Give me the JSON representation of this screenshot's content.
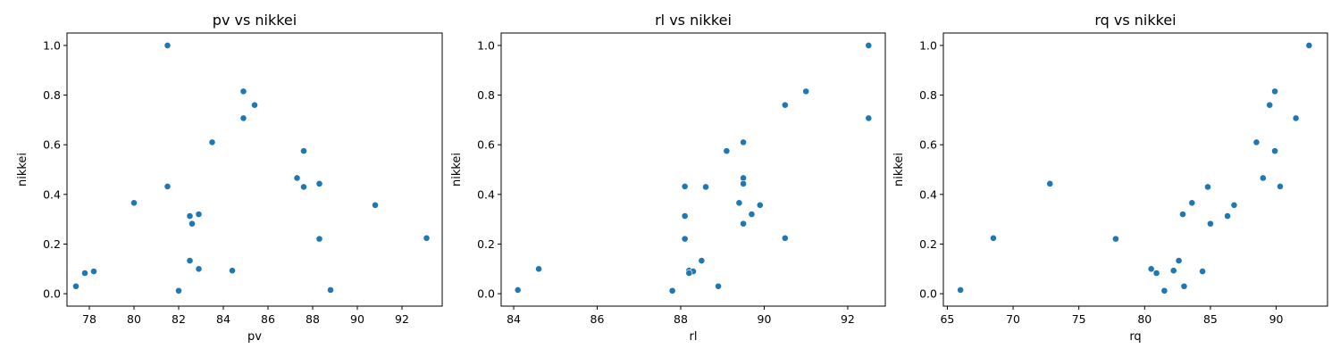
{
  "colors": {
    "point": "#1f77b4"
  },
  "chart_data": [
    {
      "type": "scatter",
      "title": "pv vs nikkei",
      "xlabel": "pv",
      "ylabel": "nikkei",
      "xlim": [
        77.0,
        93.8
      ],
      "ylim": [
        -0.05,
        1.05
      ],
      "xticks": [
        78,
        80,
        82,
        84,
        86,
        88,
        90,
        92
      ],
      "yticks": [
        0.0,
        0.2,
        0.4,
        0.6,
        0.8,
        1.0
      ],
      "grid": false,
      "points": [
        [
          81.5,
          1.0
        ],
        [
          84.9,
          0.815
        ],
        [
          85.4,
          0.76
        ],
        [
          84.9,
          0.707
        ],
        [
          83.5,
          0.61
        ],
        [
          87.6,
          0.575
        ],
        [
          87.3,
          0.466
        ],
        [
          88.3,
          0.443
        ],
        [
          81.5,
          0.432
        ],
        [
          87.6,
          0.43
        ],
        [
          80.0,
          0.366
        ],
        [
          90.8,
          0.357
        ],
        [
          82.9,
          0.32
        ],
        [
          82.5,
          0.313
        ],
        [
          82.6,
          0.282
        ],
        [
          93.1,
          0.224
        ],
        [
          88.3,
          0.221
        ],
        [
          82.5,
          0.133
        ],
        [
          82.9,
          0.1
        ],
        [
          84.4,
          0.093
        ],
        [
          78.2,
          0.09
        ],
        [
          77.8,
          0.083
        ],
        [
          77.4,
          0.03
        ],
        [
          88.8,
          0.015
        ],
        [
          82.0,
          0.012
        ]
      ]
    },
    {
      "type": "scatter",
      "title": "rl vs nikkei",
      "xlabel": "rl",
      "ylabel": "nikkei",
      "xlim": [
        83.7,
        92.9
      ],
      "ylim": [
        -0.05,
        1.05
      ],
      "xticks": [
        84,
        86,
        88,
        90,
        92
      ],
      "yticks": [
        0.0,
        0.2,
        0.4,
        0.6,
        0.8,
        1.0
      ],
      "grid": false,
      "points": [
        [
          92.5,
          1.0
        ],
        [
          91.0,
          0.815
        ],
        [
          90.5,
          0.76
        ],
        [
          92.5,
          0.707
        ],
        [
          89.5,
          0.61
        ],
        [
          89.1,
          0.575
        ],
        [
          89.5,
          0.466
        ],
        [
          89.5,
          0.443
        ],
        [
          88.1,
          0.432
        ],
        [
          88.6,
          0.43
        ],
        [
          89.4,
          0.366
        ],
        [
          89.9,
          0.357
        ],
        [
          89.7,
          0.32
        ],
        [
          88.1,
          0.313
        ],
        [
          89.5,
          0.282
        ],
        [
          90.5,
          0.224
        ],
        [
          88.1,
          0.221
        ],
        [
          88.5,
          0.133
        ],
        [
          84.6,
          0.1
        ],
        [
          88.2,
          0.093
        ],
        [
          88.3,
          0.09
        ],
        [
          88.2,
          0.083
        ],
        [
          88.9,
          0.03
        ],
        [
          84.1,
          0.015
        ],
        [
          87.8,
          0.012
        ]
      ]
    },
    {
      "type": "scatter",
      "title": "rq vs nikkei",
      "xlabel": "rq",
      "ylabel": "nikkei",
      "xlim": [
        64.7,
        93.9
      ],
      "ylim": [
        -0.05,
        1.05
      ],
      "xticks": [
        65,
        70,
        75,
        80,
        85,
        90
      ],
      "yticks": [
        0.0,
        0.2,
        0.4,
        0.6,
        0.8,
        1.0
      ],
      "grid": false,
      "points": [
        [
          92.5,
          1.0
        ],
        [
          89.9,
          0.815
        ],
        [
          89.5,
          0.76
        ],
        [
          91.5,
          0.707
        ],
        [
          88.5,
          0.61
        ],
        [
          89.9,
          0.575
        ],
        [
          89.0,
          0.466
        ],
        [
          72.8,
          0.443
        ],
        [
          90.3,
          0.432
        ],
        [
          84.8,
          0.43
        ],
        [
          83.6,
          0.366
        ],
        [
          86.8,
          0.357
        ],
        [
          82.9,
          0.32
        ],
        [
          86.3,
          0.313
        ],
        [
          85.0,
          0.282
        ],
        [
          68.5,
          0.224
        ],
        [
          77.8,
          0.221
        ],
        [
          82.6,
          0.133
        ],
        [
          80.5,
          0.1
        ],
        [
          82.2,
          0.093
        ],
        [
          84.4,
          0.09
        ],
        [
          80.9,
          0.083
        ],
        [
          83.0,
          0.03
        ],
        [
          66.0,
          0.015
        ],
        [
          81.5,
          0.012
        ]
      ]
    }
  ]
}
